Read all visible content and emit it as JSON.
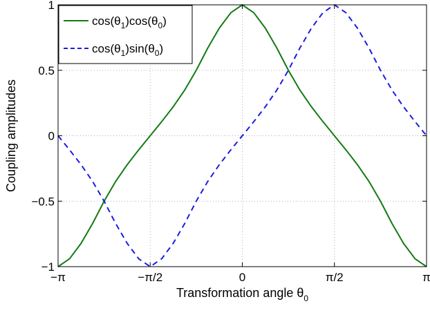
{
  "chart_data": {
    "type": "line",
    "xlabel": {
      "main": "Transformation angle ",
      "symbol": "θ",
      "subscript": "0"
    },
    "ylabel": "Coupling amplitudes",
    "xlim": [
      -3.14159,
      3.14159
    ],
    "ylim": [
      -1,
      1
    ],
    "grid": true,
    "legend_position": "top-left",
    "x_ticks": [
      {
        "value": -3.14159,
        "label": "−π"
      },
      {
        "value": -1.5708,
        "label": "−π/2"
      },
      {
        "value": 0,
        "label": "0"
      },
      {
        "value": 1.5708,
        "label": "π/2"
      },
      {
        "value": 3.14159,
        "label": "π"
      }
    ],
    "y_ticks": [
      {
        "value": -1,
        "label": "−1"
      },
      {
        "value": -0.5,
        "label": "−0.5"
      },
      {
        "value": 0,
        "label": "0"
      },
      {
        "value": 0.5,
        "label": "0.5"
      },
      {
        "value": 1,
        "label": "1"
      }
    ],
    "series": [
      {
        "legend": [
          {
            "t": "cos(θ"
          },
          {
            "t": "1",
            "sub": true
          },
          {
            "t": ")cos(θ"
          },
          {
            "t": "0",
            "sub": true
          },
          {
            "t": ")"
          }
        ],
        "color": "#127a12",
        "dash": "solid",
        "x": [
          -3.1416,
          -2.9452,
          -2.7489,
          -2.5525,
          -2.3562,
          -2.1598,
          -1.9635,
          -1.7671,
          -1.5708,
          -1.3744,
          -1.1781,
          -0.9817,
          -0.7854,
          -0.589,
          -0.3927,
          -0.1963,
          0,
          0.1963,
          0.3927,
          0.589,
          0.7854,
          0.9817,
          1.1781,
          1.3744,
          1.5708,
          1.7671,
          1.9635,
          2.1598,
          2.3562,
          2.5525,
          2.7489,
          2.9452,
          3.1416
        ],
        "y": [
          -1.0,
          -0.9397,
          -0.8218,
          -0.6702,
          -0.5,
          -0.3491,
          -0.2214,
          -0.1079,
          0.0,
          0.1079,
          0.2214,
          0.3491,
          0.5,
          0.6702,
          0.8218,
          0.9397,
          1.0,
          0.9397,
          0.8218,
          0.6702,
          0.5,
          0.3491,
          0.2214,
          0.1079,
          0.0,
          -0.1079,
          -0.2214,
          -0.3491,
          -0.5,
          -0.6702,
          -0.8218,
          -0.9397,
          -1.0
        ]
      },
      {
        "legend": [
          {
            "t": "cos(θ"
          },
          {
            "t": "1",
            "sub": true
          },
          {
            "t": ")sin(θ"
          },
          {
            "t": "0",
            "sub": true
          },
          {
            "t": ")"
          }
        ],
        "color": "#1a1ae6",
        "dash": "8,6",
        "x": [
          -3.1416,
          -2.9452,
          -2.7489,
          -2.5525,
          -2.3562,
          -2.1598,
          -1.9635,
          -1.7671,
          -1.5708,
          -1.3744,
          -1.1781,
          -0.9817,
          -0.7854,
          -0.589,
          -0.3927,
          -0.1963,
          0,
          0.1963,
          0.3927,
          0.589,
          0.7854,
          0.9817,
          1.1781,
          1.3744,
          1.5708,
          1.7671,
          1.9635,
          2.1598,
          2.3562,
          2.5525,
          2.7489,
          2.9452,
          3.1416
        ],
        "y": [
          0.0,
          -0.1079,
          -0.2214,
          -0.3491,
          -0.5,
          -0.6702,
          -0.8218,
          -0.9397,
          -1.0,
          -0.9397,
          -0.8218,
          -0.6702,
          -0.5,
          -0.3491,
          -0.2214,
          -0.1079,
          0.0,
          0.1079,
          0.2214,
          0.3491,
          0.5,
          0.6702,
          0.8218,
          0.9397,
          1.0,
          0.9397,
          0.8218,
          0.6702,
          0.5,
          0.3491,
          0.2214,
          0.1079,
          0.0
        ]
      }
    ]
  }
}
